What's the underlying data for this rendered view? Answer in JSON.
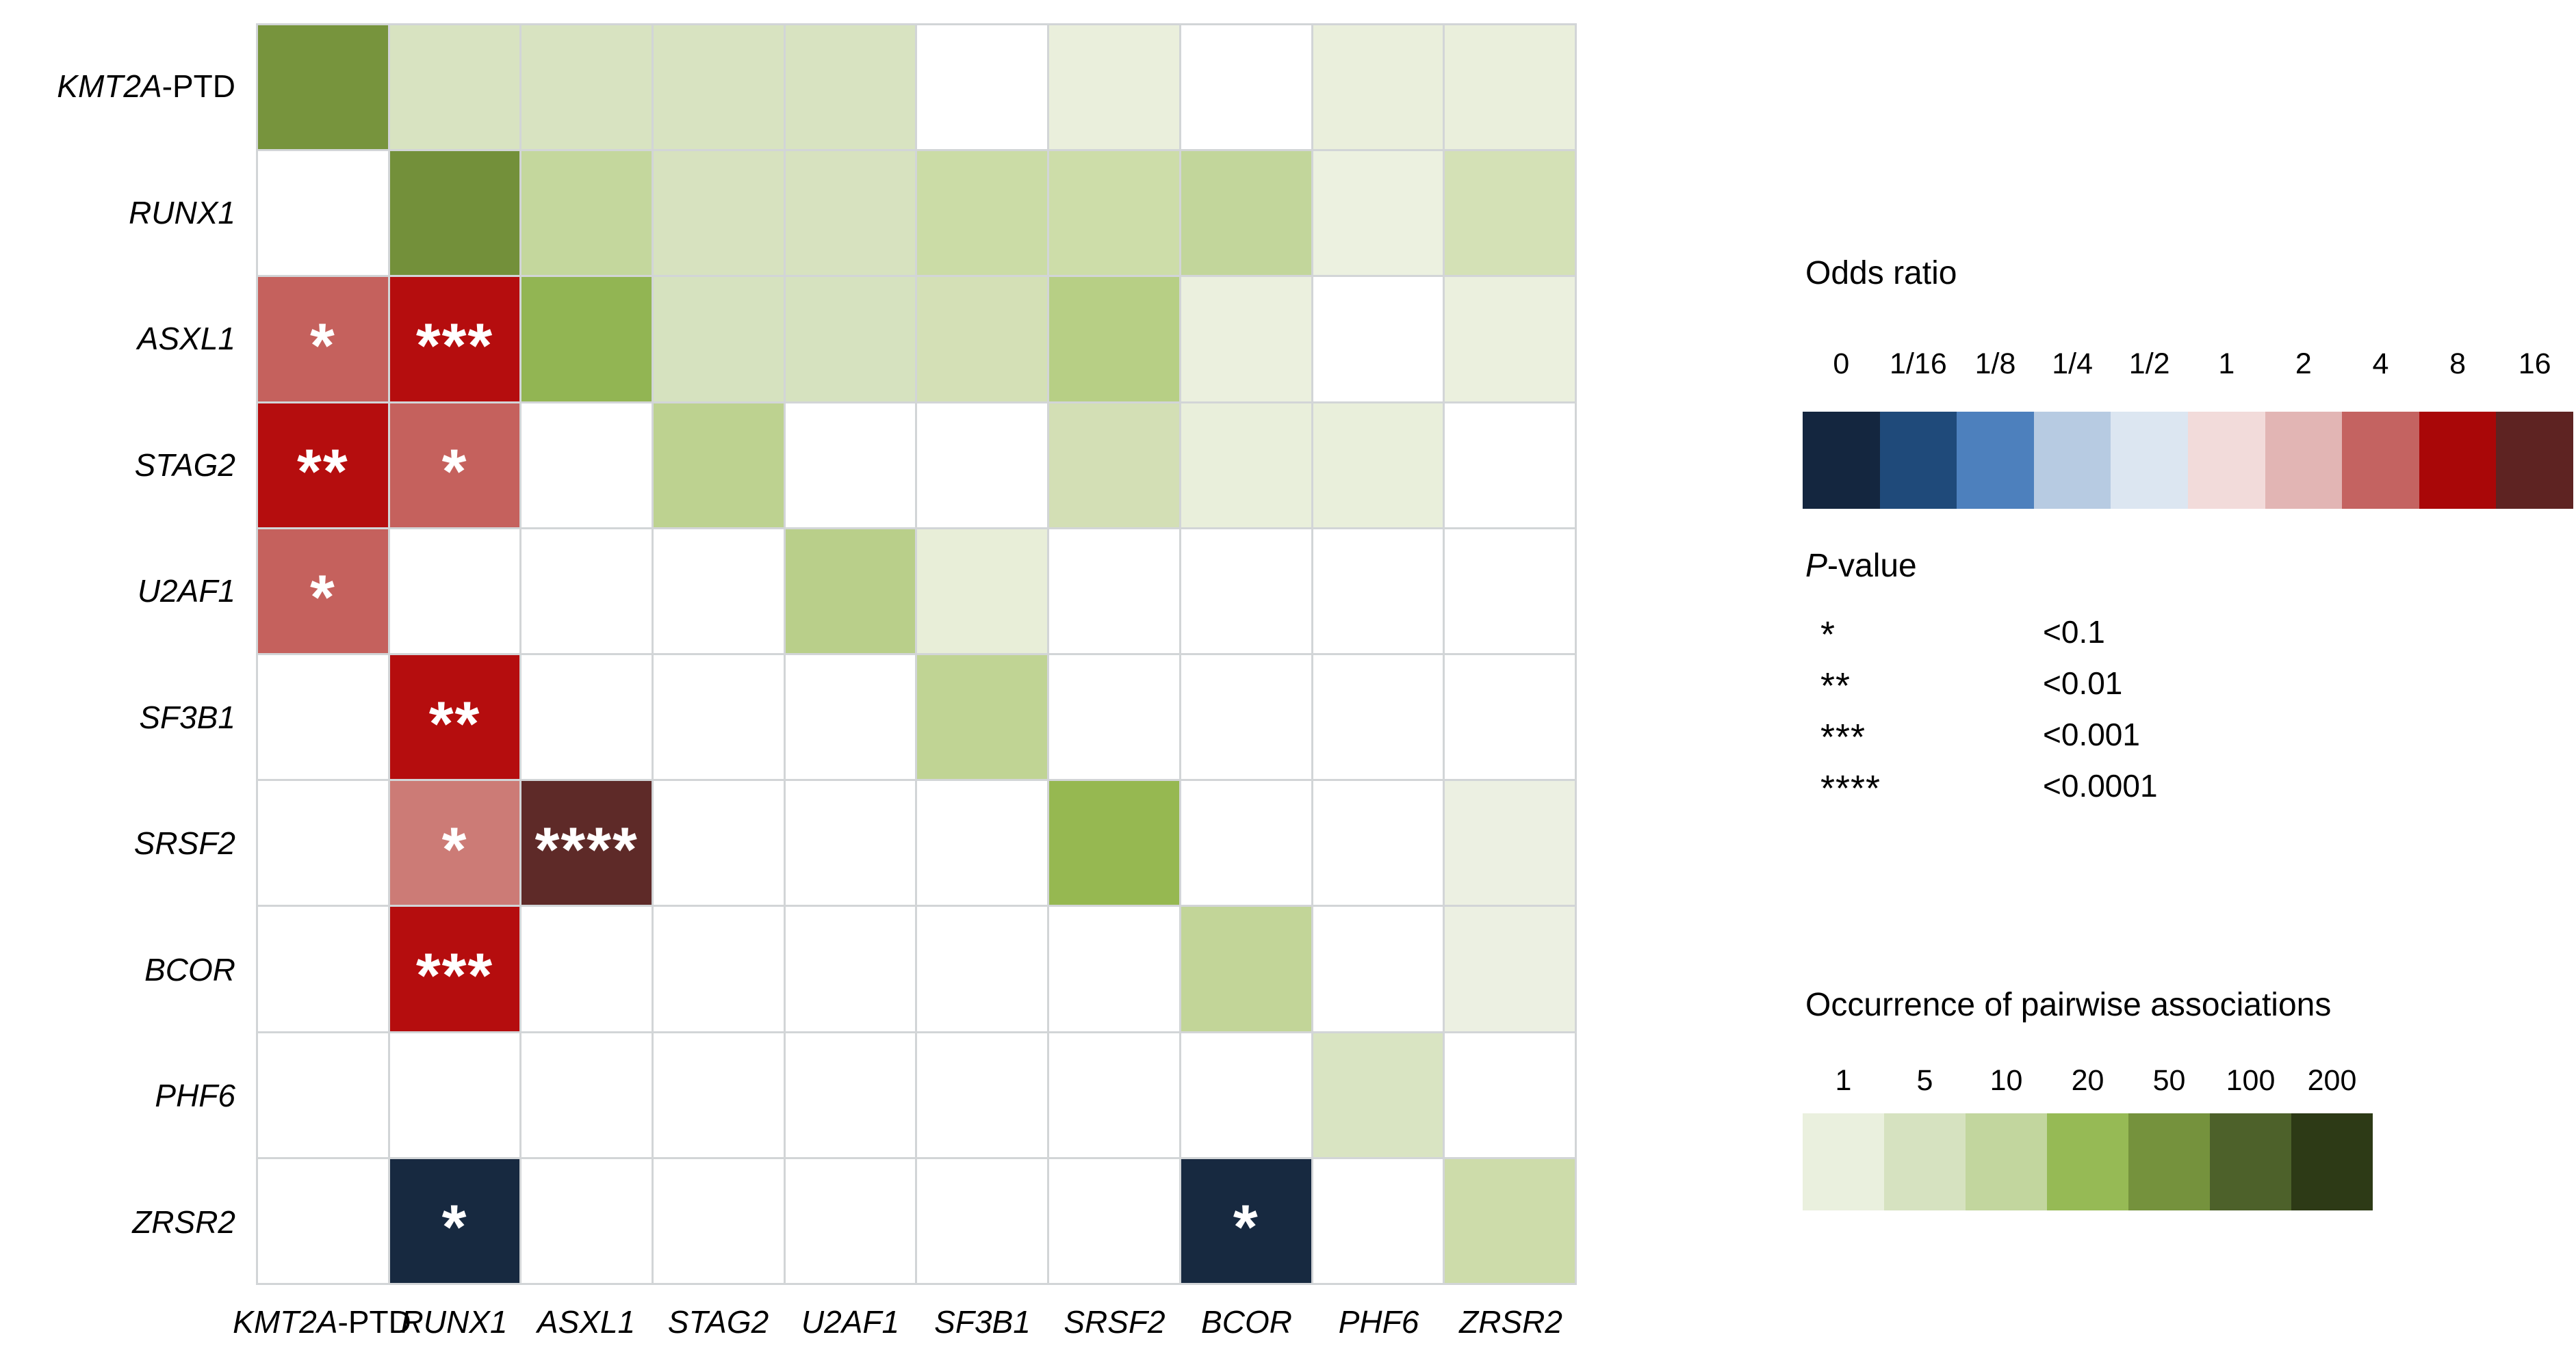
{
  "chart_data": {
    "type": "heatmap",
    "description_upper_triangle": "Occurrence of pairwise associations (green scale)",
    "description_lower_triangle": "Odds ratio (blue-red scale) with P-value stars",
    "genes": [
      {
        "italic": "KMT2A",
        "roman": "-PTD"
      },
      {
        "italic": "RUNX1",
        "roman": ""
      },
      {
        "italic": "ASXL1",
        "roman": ""
      },
      {
        "italic": "STAG2",
        "roman": ""
      },
      {
        "italic": "U2AF1",
        "roman": ""
      },
      {
        "italic": "SF3B1",
        "roman": ""
      },
      {
        "italic": "SRSF2",
        "roman": ""
      },
      {
        "italic": "BCOR",
        "roman": ""
      },
      {
        "italic": "PHF6",
        "roman": ""
      },
      {
        "italic": "ZRSR2",
        "roman": ""
      }
    ],
    "matrix_colors": [
      [
        "#77943D",
        "#D8E3C1",
        "#D8E3C1",
        "#D8E3C1",
        "#D8E3C1",
        "#FFFFFF",
        "#EAEFDC",
        "#FFFFFF",
        "#EAEFDC",
        "#EAEFDC"
      ],
      [
        "#FFFFFF",
        "#73903A",
        "#C4D79D",
        "#D7E2BF",
        "#D7E2BF",
        "#CBDCA6",
        "#CDDDA9",
        "#C2D69B",
        "#ECF1E0",
        "#D4E1B6"
      ],
      [
        "#C5615D",
        "#B50D0E",
        "#92B553",
        "#D6E2BF",
        "#D6E2BF",
        "#D4E0B6",
        "#B7CF85",
        "#EBF0DE",
        "#FFFFFF",
        "#EBF0DE"
      ],
      [
        "#B50D0E",
        "#C5615D",
        "#FFFFFF",
        "#BDD290",
        "#FFFFFF",
        "#FFFFFF",
        "#D3DFB5",
        "#E9EFDB",
        "#E9EFDB",
        "#FFFFFF"
      ],
      [
        "#C5615D",
        "#FFFFFF",
        "#FFFFFF",
        "#FFFFFF",
        "#B9CF8A",
        "#E8EED8",
        "#FFFFFF",
        "#FFFFFF",
        "#FFFFFF",
        "#FFFFFF"
      ],
      [
        "#FFFFFF",
        "#B50D0E",
        "#FFFFFF",
        "#FFFFFF",
        "#FFFFFF",
        "#C0D494",
        "#FFFFFF",
        "#FFFFFF",
        "#FFFFFF",
        "#FFFFFF"
      ],
      [
        "#FFFFFF",
        "#CC7B76",
        "#5E2A28",
        "#FFFFFF",
        "#FFFFFF",
        "#FFFFFF",
        "#96B851",
        "#FFFFFF",
        "#FFFFFF",
        "#ECF0E2"
      ],
      [
        "#FFFFFF",
        "#B50D0E",
        "#FFFFFF",
        "#FFFFFF",
        "#FFFFFF",
        "#FFFFFF",
        "#FFFFFF",
        "#C2D598",
        "#FFFFFF",
        "#ECF0E2"
      ],
      [
        "#FFFFFF",
        "#FFFFFF",
        "#FFFFFF",
        "#FFFFFF",
        "#FFFFFF",
        "#FFFFFF",
        "#FFFFFF",
        "#FFFFFF",
        "#D9E4C2",
        "#FFFFFF"
      ],
      [
        "#FFFFFF",
        "#172940",
        "#FFFFFF",
        "#FFFFFF",
        "#FFFFFF",
        "#FFFFFF",
        "#FFFFFF",
        "#172940",
        "#FFFFFF",
        "#CDDCAA"
      ]
    ],
    "significant_pairs": [
      {
        "row": "ASXL1",
        "col": "KMT2A-PTD",
        "stars": "*",
        "approx_odds_ratio": "4"
      },
      {
        "row": "ASXL1",
        "col": "RUNX1",
        "stars": "***",
        "approx_odds_ratio": "8"
      },
      {
        "row": "STAG2",
        "col": "KMT2A-PTD",
        "stars": "**",
        "approx_odds_ratio": "8"
      },
      {
        "row": "STAG2",
        "col": "RUNX1",
        "stars": "*",
        "approx_odds_ratio": "4"
      },
      {
        "row": "U2AF1",
        "col": "KMT2A-PTD",
        "stars": "*",
        "approx_odds_ratio": "4"
      },
      {
        "row": "SF3B1",
        "col": "RUNX1",
        "stars": "**",
        "approx_odds_ratio": "8"
      },
      {
        "row": "SRSF2",
        "col": "RUNX1",
        "stars": "*",
        "approx_odds_ratio": "2-4"
      },
      {
        "row": "SRSF2",
        "col": "ASXL1",
        "stars": "****",
        "approx_odds_ratio": "16"
      },
      {
        "row": "BCOR",
        "col": "RUNX1",
        "stars": "***",
        "approx_odds_ratio": "8"
      },
      {
        "row": "ZRSR2",
        "col": "RUNX1",
        "stars": "*",
        "approx_odds_ratio": "0"
      },
      {
        "row": "ZRSR2",
        "col": "BCOR",
        "stars": "*",
        "approx_odds_ratio": "0"
      }
    ]
  },
  "legends": {
    "odds_ratio": {
      "title": "Odds ratio",
      "tick_labels": [
        "0",
        "1/16",
        "1/8",
        "1/4",
        "1/2",
        "1",
        "2",
        "4",
        "8",
        "16"
      ],
      "swatch_colors": [
        "#14263F",
        "#1F4A7A",
        "#4D80BD",
        "#B7CBE2",
        "#DCE6F1",
        "#F2DBDA",
        "#E2B5B4",
        "#C46361",
        "#A90708",
        "#5E2322"
      ]
    },
    "p_value": {
      "title_italic": "P",
      "title_rest": "-value",
      "rows": [
        {
          "stars": "*",
          "threshold": "<0.1"
        },
        {
          "stars": "**",
          "threshold": "<0.01"
        },
        {
          "stars": "***",
          "threshold": "<0.001"
        },
        {
          "stars": "****",
          "threshold": "<0.0001"
        }
      ]
    },
    "occurrence": {
      "title": "Occurrence of pairwise associations",
      "tick_labels": [
        "1",
        "5",
        "10",
        "20",
        "50",
        "100",
        "200"
      ],
      "swatch_colors": [
        "#EAF0DE",
        "#D6E2C0",
        "#C2D69E",
        "#96BA55",
        "#75923D",
        "#4D612A",
        "#2D3A16"
      ]
    }
  }
}
